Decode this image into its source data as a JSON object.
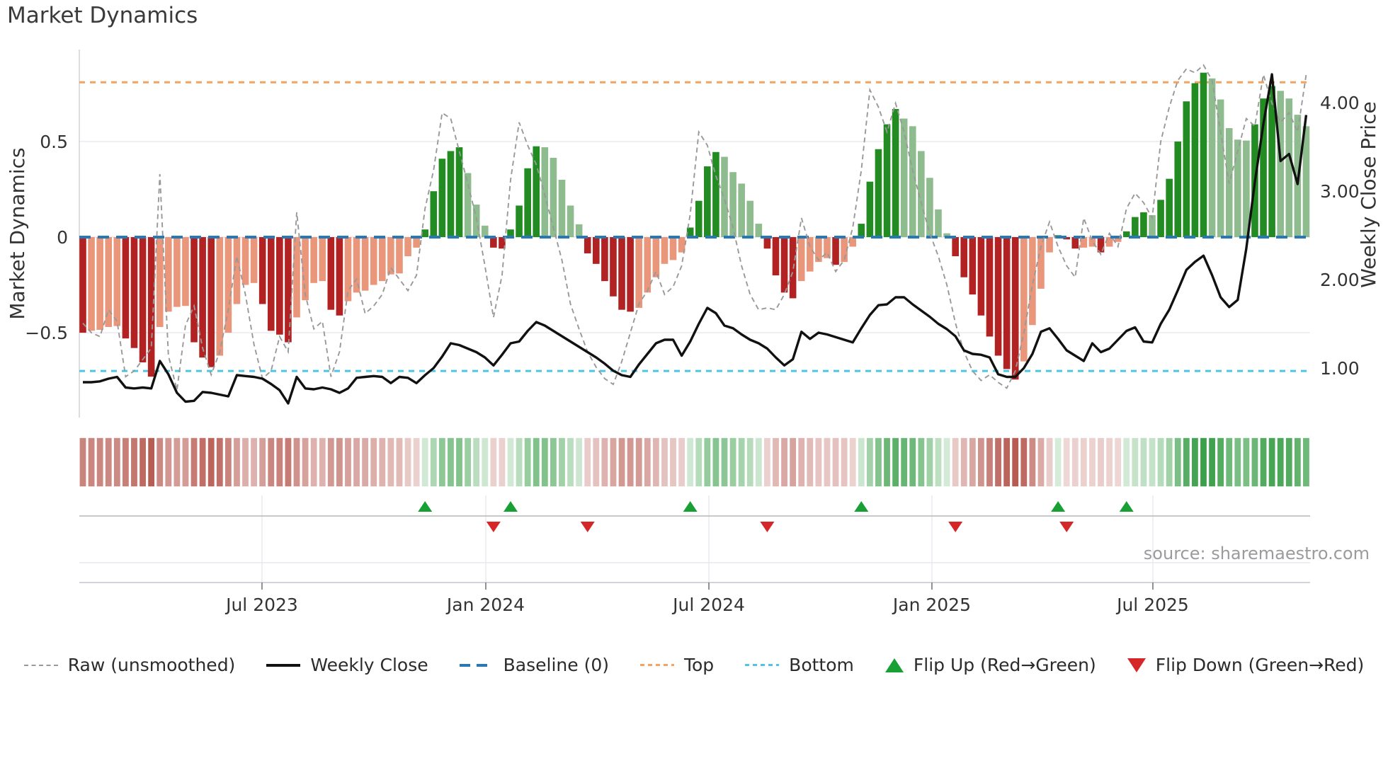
{
  "chart_data": {
    "type": "composite",
    "title": "Market Dynamics",
    "source": "source: sharemaestro.com",
    "ylabel_left": "Market Dynamics",
    "ylabel_right": "Weekly Close Price",
    "left_ylim": [
      -0.944,
      0.981
    ],
    "right_ylim": [
      0.44,
      4.6
    ],
    "baseline": 0,
    "top_line": 0.81,
    "bottom_line": -0.7,
    "grid": true,
    "legend_position": "bottom-center",
    "yticks_left": [
      {
        "v": 0.5,
        "label": "0.5"
      },
      {
        "v": 0.0,
        "label": "0"
      },
      {
        "v": -0.5,
        "label": "−0.5"
      }
    ],
    "yticks_right": [
      {
        "v": 4.0,
        "label": "4.00"
      },
      {
        "v": 3.0,
        "label": "3.00"
      },
      {
        "v": 2.0,
        "label": "2.00"
      },
      {
        "v": 1.0,
        "label": "1.00"
      }
    ],
    "xticks": [
      {
        "week": 20.94,
        "label": "Jul 2023"
      },
      {
        "week": 47.1,
        "label": "Jan 2024"
      },
      {
        "week": 73.18,
        "label": "Jul 2024"
      },
      {
        "week": 99.25,
        "label": "Jan 2025"
      },
      {
        "week": 125.08,
        "label": "Jul 2025"
      }
    ],
    "series": {
      "oscillator": [
        -0.5,
        -0.49,
        -0.485,
        -0.47,
        -0.465,
        -0.53,
        -0.58,
        -0.655,
        -0.73,
        -0.47,
        -0.39,
        -0.365,
        -0.36,
        -0.55,
        -0.63,
        -0.68,
        -0.62,
        -0.5,
        -0.35,
        -0.25,
        -0.24,
        -0.35,
        -0.49,
        -0.51,
        -0.55,
        -0.42,
        -0.33,
        -0.24,
        -0.23,
        -0.38,
        -0.41,
        -0.335,
        -0.29,
        -0.28,
        -0.25,
        -0.23,
        -0.195,
        -0.19,
        -0.1,
        -0.055,
        0.04,
        0.24,
        0.41,
        0.45,
        0.47,
        0.335,
        0.17,
        0.06,
        -0.055,
        -0.06,
        0.04,
        0.165,
        0.36,
        0.475,
        0.47,
        0.415,
        0.3,
        0.165,
        0.067,
        -0.085,
        -0.14,
        -0.23,
        -0.31,
        -0.38,
        -0.39,
        -0.37,
        -0.29,
        -0.21,
        -0.14,
        -0.12,
        -0.08,
        0.05,
        0.19,
        0.37,
        0.445,
        0.42,
        0.34,
        0.28,
        0.19,
        0.07,
        -0.06,
        -0.2,
        -0.29,
        -0.32,
        -0.23,
        -0.18,
        -0.13,
        -0.11,
        -0.145,
        -0.13,
        -0.05,
        0.07,
        0.29,
        0.46,
        0.59,
        0.67,
        0.62,
        0.58,
        0.45,
        0.31,
        0.145,
        0.02,
        -0.1,
        -0.21,
        -0.3,
        -0.41,
        -0.52,
        -0.62,
        -0.69,
        -0.745,
        -0.65,
        -0.46,
        -0.27,
        -0.08,
        0.01,
        -0.012,
        -0.06,
        -0.055,
        -0.05,
        -0.08,
        -0.05,
        -0.025,
        0.03,
        0.105,
        0.13,
        0.115,
        0.195,
        0.305,
        0.5,
        0.71,
        0.805,
        0.86,
        0.83,
        0.72,
        0.57,
        0.51,
        0.505,
        0.59,
        0.725,
        0.79,
        0.765,
        0.725,
        0.64,
        0.58
      ],
      "raw": [
        -0.45,
        -0.5,
        -0.52,
        -0.38,
        -0.44,
        -0.73,
        -0.7,
        -0.64,
        -0.58,
        0.33,
        -0.62,
        -0.8,
        -0.46,
        -0.36,
        -0.58,
        -0.72,
        -0.6,
        -0.38,
        -0.1,
        -0.3,
        -0.56,
        -0.74,
        -0.7,
        -0.52,
        -0.6,
        0.13,
        -0.3,
        -0.48,
        -0.44,
        -0.73,
        -0.6,
        -0.28,
        -0.22,
        -0.4,
        -0.36,
        -0.3,
        -0.16,
        -0.22,
        -0.28,
        -0.2,
        0.15,
        0.35,
        0.65,
        0.62,
        0.45,
        0.28,
        0.1,
        -0.15,
        -0.42,
        -0.2,
        0.3,
        0.6,
        0.48,
        0.38,
        0.22,
        0.05,
        -0.12,
        -0.35,
        -0.48,
        -0.6,
        -0.68,
        -0.74,
        -0.77,
        -0.65,
        -0.5,
        -0.35,
        -0.28,
        -0.18,
        -0.3,
        -0.26,
        -0.15,
        0.12,
        0.55,
        0.48,
        0.32,
        0.2,
        0.05,
        -0.15,
        -0.3,
        -0.38,
        -0.37,
        -0.38,
        -0.3,
        -0.18,
        0.1,
        -0.05,
        -0.12,
        -0.08,
        -0.18,
        -0.12,
        0.05,
        0.35,
        0.77,
        0.68,
        0.55,
        0.7,
        0.55,
        0.35,
        0.18,
        0.02,
        -0.1,
        -0.25,
        -0.45,
        -0.6,
        -0.7,
        -0.75,
        -0.72,
        -0.76,
        -0.79,
        -0.7,
        -0.5,
        -0.25,
        -0.05,
        0.08,
        -0.05,
        -0.15,
        -0.21,
        0.1,
        -0.02,
        -0.09,
        0.02,
        -0.05,
        0.15,
        0.23,
        0.18,
        0.1,
        0.5,
        0.68,
        0.82,
        0.88,
        0.86,
        0.9,
        0.82,
        0.55,
        0.28,
        0.45,
        0.62,
        0.58,
        0.85,
        0.7,
        0.6,
        0.65,
        0.55,
        0.85
      ],
      "price": [
        0.84,
        0.84,
        0.85,
        0.88,
        0.9,
        0.78,
        0.77,
        0.78,
        0.77,
        1.08,
        0.93,
        0.72,
        0.62,
        0.63,
        0.73,
        0.72,
        0.7,
        0.68,
        0.92,
        0.91,
        0.9,
        0.88,
        0.82,
        0.75,
        0.6,
        0.9,
        0.77,
        0.76,
        0.78,
        0.76,
        0.72,
        0.77,
        0.89,
        0.9,
        0.91,
        0.9,
        0.83,
        0.9,
        0.89,
        0.83,
        0.92,
        1.0,
        1.13,
        1.28,
        1.26,
        1.22,
        1.18,
        1.12,
        1.03,
        1.15,
        1.28,
        1.3,
        1.42,
        1.52,
        1.48,
        1.42,
        1.36,
        1.3,
        1.24,
        1.18,
        1.12,
        1.05,
        0.97,
        0.92,
        0.9,
        1.04,
        1.16,
        1.28,
        1.32,
        1.32,
        1.14,
        1.3,
        1.5,
        1.68,
        1.62,
        1.48,
        1.45,
        1.38,
        1.32,
        1.28,
        1.22,
        1.12,
        1.03,
        1.1,
        1.41,
        1.33,
        1.4,
        1.38,
        1.35,
        1.32,
        1.29,
        1.45,
        1.6,
        1.71,
        1.72,
        1.8,
        1.8,
        1.72,
        1.65,
        1.58,
        1.5,
        1.44,
        1.36,
        1.2,
        1.16,
        1.15,
        1.12,
        0.93,
        0.9,
        0.9,
        1.0,
        1.16,
        1.41,
        1.45,
        1.33,
        1.2,
        1.14,
        1.08,
        1.28,
        1.18,
        1.22,
        1.32,
        1.42,
        1.46,
        1.3,
        1.29,
        1.5,
        1.66,
        1.88,
        2.11,
        2.2,
        2.27,
        2.05,
        1.8,
        1.69,
        1.77,
        2.35,
        3.1,
        3.76,
        4.32,
        3.34,
        3.42,
        3.08,
        3.86
      ]
    },
    "flip_up_indices": [
      40,
      50,
      71,
      91,
      114,
      122
    ],
    "flip_down_indices": [
      48,
      59,
      80,
      102,
      115
    ],
    "legend": [
      {
        "label": "Raw (unsmoothed)"
      },
      {
        "label": "Weekly Close"
      },
      {
        "label": "Baseline (0)"
      },
      {
        "label": "Top"
      },
      {
        "label": "Bottom"
      },
      {
        "label": "Flip Up (Red→Green)"
      },
      {
        "label": "Flip Down (Green→Red)"
      }
    ],
    "colors": {
      "bar_neg_strong": "#b22222",
      "bar_neg_fading": "#e9967a",
      "bar_pos_strong": "#228b22",
      "bar_pos_fading": "#8fbc8f",
      "baseline": "#2878b5",
      "top": "#f4a460",
      "bottom": "#4cc6e2",
      "raw": "#999999",
      "price": "#111111",
      "flip_up": "#18a034",
      "flip_down": "#d62728",
      "grid": "#e7e7ef",
      "spine": "#d2d2da",
      "marker_line": "#b5b5b5",
      "tick_text": "#333333"
    }
  }
}
